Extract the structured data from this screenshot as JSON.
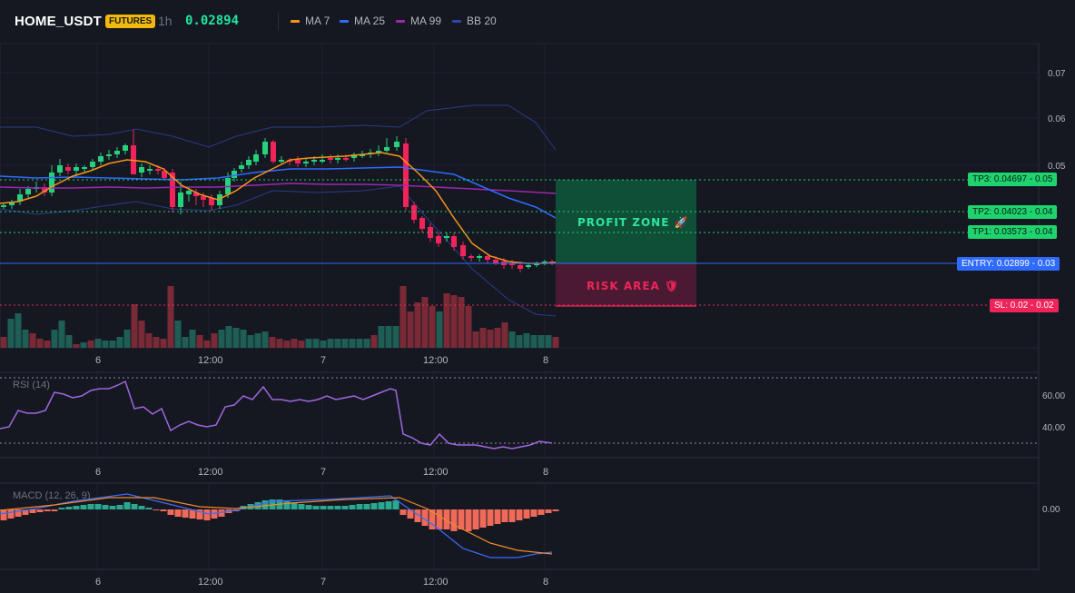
{
  "header": {
    "symbol": "HOME_USDT",
    "badge": "FUTURES",
    "timeframe": "1h",
    "last_price": "0.02894",
    "indicators": [
      {
        "label": "MA 7",
        "color": "#f7931a"
      },
      {
        "label": "MA 25",
        "color": "#2f6bff"
      },
      {
        "label": "MA 99",
        "color": "#9c27b0"
      },
      {
        "label": "BB 20",
        "color": "#3344aa"
      }
    ]
  },
  "price_axis": [
    "0.07",
    "0.06",
    "0.05"
  ],
  "time_axis": [
    "6",
    "12:00",
    "7",
    "12:00",
    "8"
  ],
  "levels": {
    "tp3": {
      "label": "TP3: 0.04697",
      "axis": "0.05"
    },
    "tp2": {
      "label": "TP2: 0.04023",
      "axis": "0.04"
    },
    "tp1": {
      "label": "TP1: 0.03573",
      "axis": "0.04"
    },
    "entry": {
      "label": "ENTRY: 0.02899",
      "axis": "0.03"
    },
    "sl": {
      "label": "SL: 0.02",
      "axis": "0.02"
    }
  },
  "zones": {
    "profit": "PROFIT ZONE 🚀",
    "risk": "RISK AREA 🛡"
  },
  "rsi": {
    "label": "RSI (14)",
    "axis": [
      "60.00",
      "40.00"
    ]
  },
  "macd": {
    "label": "MACD (12, 26, 9)",
    "axis": [
      "0.00"
    ]
  },
  "colors": {
    "up": "#26d07c",
    "down": "#f0245a",
    "profit_zone": "#0f5e3e",
    "risk_zone": "#5a1a35",
    "entry_tag": "#2f6bff",
    "tp_tag": "#1fd46e",
    "sl_tag": "#f0245a"
  }
}
